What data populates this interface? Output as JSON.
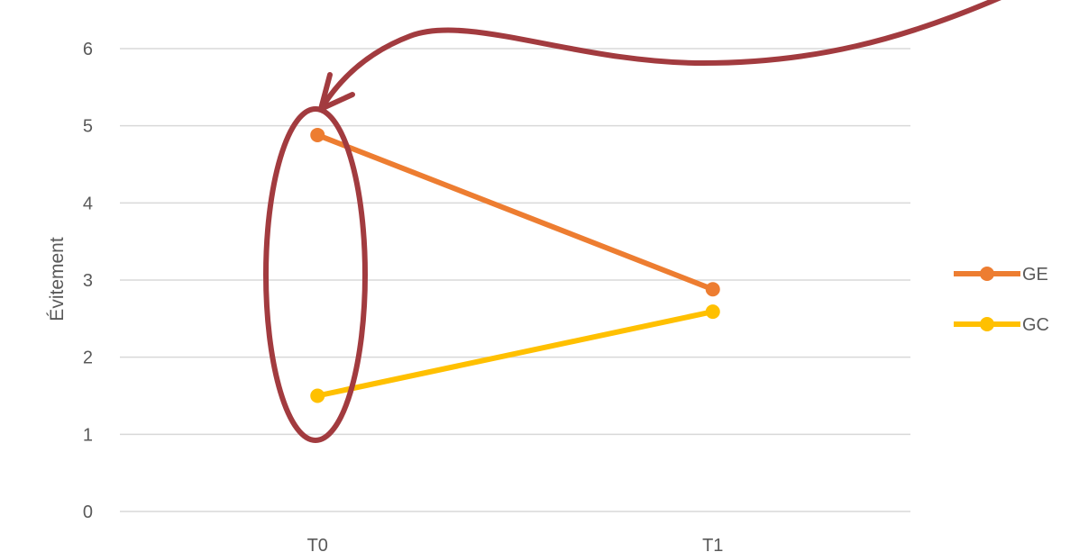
{
  "chart_data": {
    "type": "line",
    "categories": [
      "T0",
      "T1"
    ],
    "series": [
      {
        "name": "GE",
        "values": [
          4.88,
          2.88
        ],
        "color": "#ED7D31"
      },
      {
        "name": "GC",
        "values": [
          1.5,
          2.59
        ],
        "color": "#FFC000"
      }
    ],
    "ylabel": "Évitement",
    "ylim": [
      0,
      6
    ],
    "yticks": [
      0,
      1,
      2,
      3,
      4,
      5,
      6
    ],
    "grid": true,
    "legend_position": "right"
  },
  "annotation": {
    "type": "ellipse-with-curved-arrow",
    "target": "T0",
    "color": "#A23B3F"
  },
  "colors": {
    "gridline": "#D9D9D9",
    "tick_text": "#595959"
  }
}
